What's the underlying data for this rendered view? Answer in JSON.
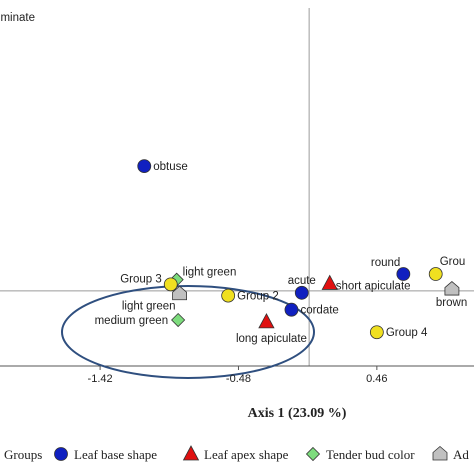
{
  "chart_data": {
    "type": "scatter",
    "xlabel": "Axis 1 (23.09 %)",
    "x_ticks": [
      "-1.42",
      "-0.48",
      "0.46"
    ],
    "x_tick_values": [
      -1.42,
      -0.48,
      0.46
    ],
    "xlim": [
      -2.1,
      1.12
    ],
    "ylim": [
      -0.8,
      3.1
    ],
    "axis_crossing": {
      "x": 0.0,
      "y": 0.0
    },
    "grid": false,
    "legend_position": "bottom",
    "colors": {
      "groups": "#f0e020",
      "leaf_base_shape": "#1020c0",
      "leaf_apex_shape": "#e01010",
      "tender_bud_color": "#7ddc7d",
      "adaxial_color": "#c0c0c0",
      "ellipse": "#2f4f7f"
    },
    "legend": [
      {
        "label": "Groups",
        "marker": "circle",
        "color": "#f0e020"
      },
      {
        "label": "Leaf base shape",
        "marker": "circle",
        "color": "#1020c0"
      },
      {
        "label": "Leaf apex shape",
        "marker": "triangle",
        "color": "#e01010"
      },
      {
        "label": "Tender bud color",
        "marker": "diamond",
        "color": "#7ddc7d"
      },
      {
        "label": "Ad",
        "marker": "pentagon",
        "color": "#c0c0c0"
      }
    ],
    "points": [
      {
        "label": "acuminate",
        "series": "Leaf apex shape",
        "x": -2.25,
        "y": 2.92
      },
      {
        "label": "obtuse",
        "series": "Leaf base shape",
        "x": -1.12,
        "y": 1.33
      },
      {
        "label": "light green",
        "series": "Tender bud color",
        "x": -0.9,
        "y": 0.12
      },
      {
        "label": "Group 3",
        "series": "Groups",
        "x": -0.94,
        "y": 0.07
      },
      {
        "label": "light green",
        "series": "Ad",
        "x": -0.88,
        "y": -0.03
      },
      {
        "label": "Group 2",
        "series": "Groups",
        "x": -0.55,
        "y": -0.05
      },
      {
        "label": "acute",
        "series": "Leaf base shape",
        "x": -0.05,
        "y": -0.02
      },
      {
        "label": "short apiculate",
        "series": "Leaf apex shape",
        "x": 0.14,
        "y": 0.08
      },
      {
        "label": "cordate",
        "series": "Leaf base shape",
        "x": -0.12,
        "y": -0.2
      },
      {
        "label": "medium green",
        "series": "Tender bud color",
        "x": -0.89,
        "y": -0.31
      },
      {
        "label": "long apiculate",
        "series": "Leaf apex shape",
        "x": -0.29,
        "y": -0.33
      },
      {
        "label": "round",
        "series": "Leaf base shape",
        "x": 0.64,
        "y": 0.18
      },
      {
        "label": "Grou",
        "series": "Groups",
        "x": 0.86,
        "y": 0.18
      },
      {
        "label": "brown",
        "series": "Ad",
        "x": 0.97,
        "y": 0.02
      },
      {
        "label": "Group 4",
        "series": "Groups",
        "x": 0.46,
        "y": -0.44
      }
    ]
  }
}
